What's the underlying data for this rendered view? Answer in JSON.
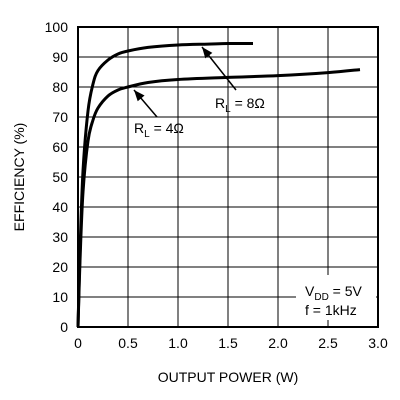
{
  "chart_data": {
    "type": "line",
    "xlabel": "OUTPUT POWER (W)",
    "ylabel": "EFFICIENCY (%)",
    "xlim": [
      0,
      3.0
    ],
    "ylim": [
      0,
      100
    ],
    "x_ticks": [
      "0",
      "0.5",
      "1.0",
      "1.5",
      "2.0",
      "2.5",
      "3.0"
    ],
    "y_ticks": [
      "0",
      "10",
      "20",
      "30",
      "40",
      "50",
      "60",
      "70",
      "80",
      "90",
      "100"
    ],
    "grid": true,
    "series": [
      {
        "name": "RL = 8Ω",
        "x": [
          0,
          0.02,
          0.05,
          0.1,
          0.15,
          0.2,
          0.3,
          0.4,
          0.5,
          0.7,
          1.0,
          1.3,
          1.5,
          1.75
        ],
        "y": [
          0,
          25,
          52,
          72,
          81,
          85.5,
          89,
          91,
          92,
          93.2,
          94,
          94.3,
          94.5,
          94.5
        ]
      },
      {
        "name": "RL = 4Ω",
        "x": [
          0,
          0.02,
          0.05,
          0.1,
          0.15,
          0.2,
          0.3,
          0.4,
          0.5,
          0.7,
          1.0,
          1.5,
          2.0,
          2.5,
          2.82
        ],
        "y": [
          0,
          22,
          45,
          62,
          69,
          73,
          77,
          79,
          80,
          81.5,
          82.5,
          83.2,
          83.8,
          84.8,
          85.8
        ]
      }
    ],
    "annotations": {
      "r8": {
        "main": "R",
        "sub": "L",
        "tail": " = 8Ω"
      },
      "r4": {
        "main": "R",
        "sub": "L",
        "tail": " = 4Ω"
      },
      "conditions": {
        "vdd_main": "V",
        "vdd_sub": "DD",
        "vdd_tail": " = 5V",
        "freq": "f = 1kHz"
      }
    }
  }
}
